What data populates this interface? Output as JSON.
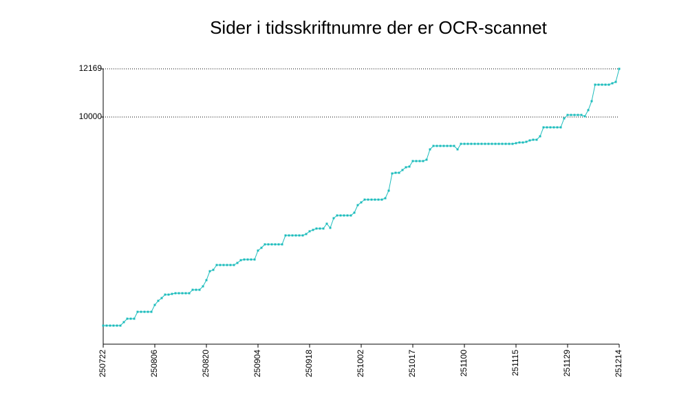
{
  "chart_data": {
    "type": "line",
    "title": "Sider i tidsskriftnumre der er OCR-scannet",
    "categories": [
      "250722",
      null,
      null,
      null,
      null,
      null,
      null,
      null,
      null,
      null,
      null,
      null,
      null,
      null,
      null,
      "250806",
      null,
      null,
      null,
      null,
      null,
      null,
      null,
      null,
      null,
      null,
      null,
      null,
      null,
      null,
      "250820",
      null,
      null,
      null,
      null,
      null,
      null,
      null,
      null,
      null,
      null,
      null,
      null,
      null,
      null,
      "250904",
      null,
      null,
      null,
      null,
      null,
      null,
      null,
      null,
      null,
      null,
      null,
      null,
      null,
      null,
      "250918",
      null,
      null,
      null,
      null,
      null,
      null,
      null,
      null,
      null,
      null,
      null,
      null,
      null,
      null,
      "251002",
      null,
      null,
      null,
      null,
      null,
      null,
      null,
      null,
      null,
      null,
      null,
      null,
      null,
      null,
      "251017",
      null,
      null,
      null,
      null,
      null,
      null,
      null,
      null,
      null,
      null,
      null,
      null,
      null,
      null,
      "251100",
      null,
      null,
      null,
      null,
      null,
      null,
      null,
      null,
      null,
      null,
      null,
      null,
      null,
      null,
      "251115",
      null,
      null,
      null,
      null,
      null,
      null,
      null,
      null,
      null,
      null,
      null,
      null,
      null,
      null,
      "251129",
      null,
      null,
      null,
      null,
      null,
      null,
      null,
      null,
      null,
      null,
      null,
      null,
      null,
      null,
      "251214"
    ],
    "values": [
      611,
      611,
      611,
      611,
      611,
      611,
      766,
      921,
      921,
      921,
      1231,
      1231,
      1231,
      1231,
      1231,
      1541,
      1727,
      1850,
      2006,
      2006,
      2037,
      2068,
      2068,
      2068,
      2068,
      2068,
      2222,
      2222,
      2222,
      2378,
      2656,
      3059,
      3121,
      3338,
      3338,
      3338,
      3338,
      3338,
      3338,
      3431,
      3555,
      3586,
      3586,
      3586,
      3586,
      3989,
      4113,
      4268,
      4268,
      4268,
      4268,
      4268,
      4268,
      4670,
      4670,
      4670,
      4670,
      4670,
      4670,
      4732,
      4856,
      4918,
      4980,
      4980,
      4980,
      5197,
      5011,
      5445,
      5569,
      5569,
      5569,
      5569,
      5569,
      5693,
      6034,
      6158,
      6282,
      6282,
      6282,
      6282,
      6282,
      6282,
      6344,
      6684,
      7459,
      7490,
      7490,
      7614,
      7738,
      7769,
      8017,
      8017,
      8017,
      8017,
      8079,
      8544,
      8699,
      8699,
      8699,
      8699,
      8699,
      8699,
      8699,
      8544,
      8792,
      8792,
      8792,
      8792,
      8792,
      8792,
      8792,
      8792,
      8792,
      8792,
      8792,
      8792,
      8792,
      8792,
      8792,
      8792,
      8823,
      8854,
      8854,
      8885,
      8947,
      8978,
      8978,
      9132,
      9535,
      9535,
      9535,
      9535,
      9535,
      9535,
      9938,
      10093,
      10093,
      10093,
      10093,
      10093,
      10031,
      10310,
      10713,
      11456,
      11456,
      11456,
      11456,
      11456,
      11518,
      11580,
      12169
    ],
    "color": "#1cbcbc",
    "ylim": [
      -225,
      12169
    ],
    "yticks": [
      10000,
      12169
    ],
    "grid": true
  }
}
